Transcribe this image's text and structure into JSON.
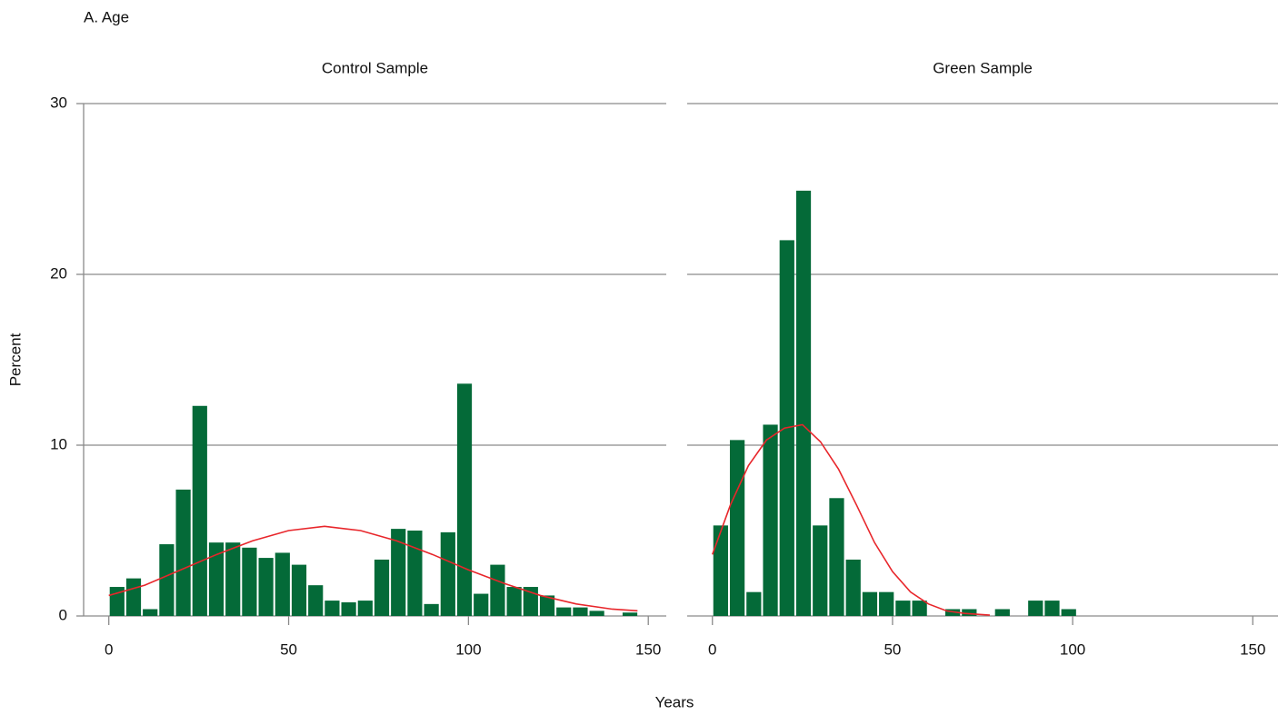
{
  "title": "A. Age",
  "ylabel": "Percent",
  "xlabel": "Years",
  "chart_data": [
    {
      "type": "histogram",
      "subtitle": "Control Sample",
      "color": "#046a38",
      "bins": [
        0,
        4.6,
        9.2,
        13.8,
        18.4,
        23,
        27.6,
        32.2,
        36.8,
        41.4,
        46,
        50.6,
        55.2,
        59.8,
        64.4,
        69,
        73.6,
        78.2,
        82.8,
        87.4,
        92,
        96.6,
        101.2,
        105.8,
        110.4,
        115,
        119.6,
        124.2,
        128.8,
        133.4,
        138,
        142.6,
        147.2
      ],
      "values": [
        1.7,
        2.2,
        0.4,
        4.2,
        7.4,
        12.3,
        4.3,
        4.3,
        4.0,
        3.4,
        3.7,
        3.0,
        1.8,
        0.9,
        0.8,
        0.9,
        3.3,
        5.1,
        5.0,
        0.7,
        4.9,
        13.6,
        1.3,
        3.0,
        1.7,
        1.7,
        1.2,
        0.5,
        0.5,
        0.3,
        0,
        0.2
      ],
      "curve": {
        "color": "#e8262b",
        "x": [
          0,
          10,
          20,
          30,
          40,
          50,
          60,
          70,
          80,
          90,
          100,
          110,
          120,
          130,
          140,
          147
        ],
        "values": [
          1.2,
          1.8,
          2.7,
          3.6,
          4.4,
          5.0,
          5.25,
          5.0,
          4.4,
          3.6,
          2.7,
          1.9,
          1.2,
          0.7,
          0.4,
          0.3
        ]
      },
      "xlim": [
        -7,
        155
      ],
      "ylim": [
        0,
        30
      ],
      "xticks": [
        0,
        50,
        100,
        150
      ],
      "yticks": [
        0,
        10,
        20,
        30
      ],
      "grid": true
    },
    {
      "type": "histogram",
      "subtitle": "Green Sample",
      "color": "#046a38",
      "bins": [
        0,
        4.6,
        9.2,
        13.8,
        18.4,
        23,
        27.6,
        32.2,
        36.8,
        41.4,
        46,
        50.6,
        55.2,
        59.8,
        64.4,
        69,
        73.6,
        78.2,
        82.8,
        87.4,
        92,
        96.6,
        101.2
      ],
      "values": [
        5.3,
        10.3,
        1.4,
        11.2,
        22.0,
        24.9,
        5.3,
        6.9,
        3.3,
        1.4,
        1.4,
        0.9,
        0.9,
        0,
        0.4,
        0.4,
        0,
        0.4,
        0,
        0.9,
        0.9,
        0.4
      ],
      "curve": {
        "color": "#e8262b",
        "x": [
          0,
          5,
          10,
          15,
          20,
          25,
          30,
          35,
          40,
          45,
          50,
          55,
          60,
          65,
          70,
          77
        ],
        "values": [
          3.6,
          6.5,
          8.8,
          10.3,
          11.0,
          11.2,
          10.2,
          8.6,
          6.5,
          4.3,
          2.6,
          1.4,
          0.7,
          0.3,
          0.15,
          0.05
        ]
      },
      "xlim": [
        -7,
        157
      ],
      "ylim": [
        0,
        30
      ],
      "xticks": [
        0,
        50,
        100,
        150
      ],
      "yticks": [
        0,
        10,
        20,
        30
      ],
      "grid": true
    }
  ]
}
